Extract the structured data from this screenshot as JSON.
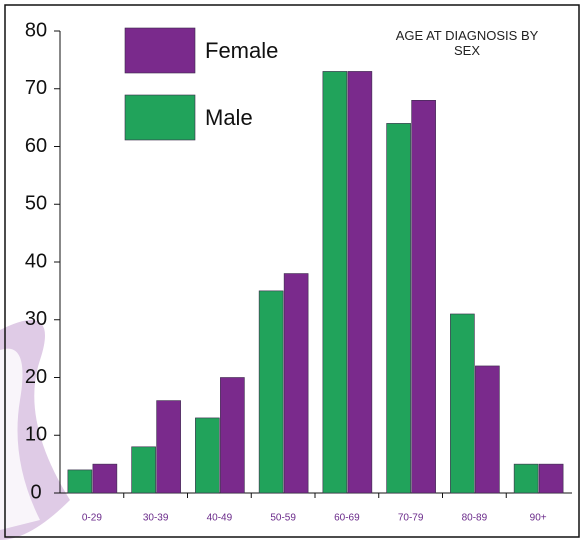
{
  "chart_data": {
    "type": "bar",
    "title": "AGE AT DIAGNOSIS BY SEX",
    "categories": [
      "0-29",
      "30-39",
      "40-49",
      "50-59",
      "60-69",
      "70-79",
      "80-89",
      "90+"
    ],
    "series": [
      {
        "name": "Male",
        "color": "#21a35b",
        "values": [
          4,
          8,
          13,
          35,
          73,
          64,
          31,
          5
        ]
      },
      {
        "name": "Female",
        "color": "#7a2a8c",
        "values": [
          5,
          16,
          20,
          38,
          73,
          68,
          22,
          5
        ]
      }
    ],
    "ylim": [
      0,
      80
    ],
    "yticks": [
      0,
      10,
      20,
      30,
      40,
      50,
      60,
      70,
      80
    ],
    "grid": false
  }
}
